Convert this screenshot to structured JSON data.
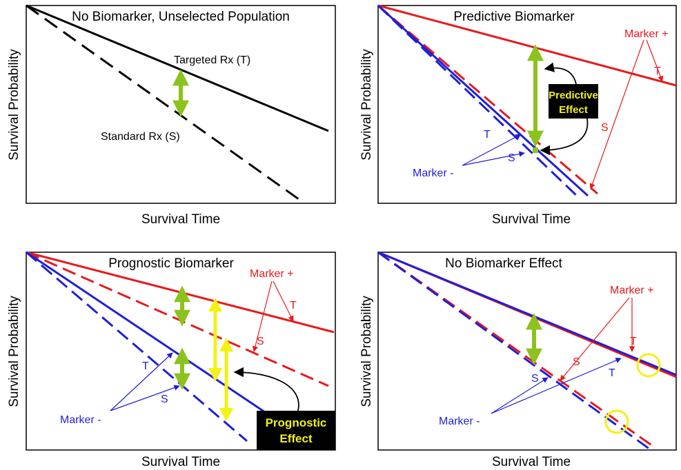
{
  "colors": {
    "black": "#000000",
    "red": "#e8191b",
    "blue": "#1f1fd8",
    "green": "#8cc21d",
    "yellow": "#f2f215",
    "callout_bg": "#000000",
    "callout_text": "#f2f215"
  },
  "panels": [
    {
      "id": "no-biomarker",
      "title": "No Biomarker, Unselected Population",
      "ylabel": "Survival Probability",
      "xlabel": "Survival Time",
      "labels": {
        "targeted": "Targeted Rx (T)",
        "standard": "Standard Rx (S)"
      }
    },
    {
      "id": "predictive",
      "title": "Predictive Biomarker",
      "ylabel": "Survival Probability",
      "xlabel": "Survival Time",
      "labels": {
        "marker_pos": "Marker +",
        "t_red": "T",
        "s_red": "S",
        "marker_neg": "Marker -",
        "t_blue": "T",
        "s_blue": "S",
        "callout_line1": "Predictive",
        "callout_line2": "Effect"
      }
    },
    {
      "id": "prognostic",
      "title": "Prognostic Biomarker",
      "ylabel": "Survival Probability",
      "xlabel": "Survival Time",
      "labels": {
        "marker_pos": "Marker +",
        "t_red": "T",
        "s_red": "S",
        "marker_neg": "Marker -",
        "t_blue": "T",
        "s_blue": "S",
        "callout_line1": "Prognostic",
        "callout_line2": "Effect"
      }
    },
    {
      "id": "no-effect",
      "title": "No Biomarker Effect",
      "ylabel": "Survival Probability",
      "xlabel": "Survival Time",
      "labels": {
        "marker_pos": "Marker +",
        "t_red": "T",
        "s_red": "S",
        "marker_neg": "Marker -",
        "t_blue": "T",
        "s_blue": "S"
      }
    }
  ]
}
